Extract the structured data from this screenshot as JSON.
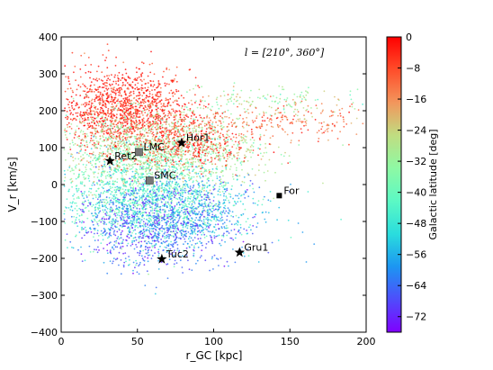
{
  "chart_data": {
    "type": "scatter",
    "xlabel": "r_GC [kpc]",
    "ylabel": "V_r [km/s]",
    "xlim": [
      0,
      200
    ],
    "ylim": [
      -400,
      400
    ],
    "x_ticks": [
      "0",
      "50",
      "100",
      "150",
      "200"
    ],
    "y_ticks": [
      "400",
      "300",
      "200",
      "100",
      "0",
      "−100",
      "−200",
      "−300",
      "−400"
    ],
    "range_annotation": "l = [210°, 360°]",
    "colorbar": {
      "label": "Galactic latitude [deg]",
      "range": [
        -76,
        0
      ],
      "ticks": [
        "0",
        "−8",
        "−16",
        "−24",
        "−32",
        "−40",
        "−48",
        "−56",
        "−64",
        "−72"
      ],
      "colormap": "rainbow",
      "colors": [
        "#8000ff",
        "#4e4dfb",
        "#1c96f2",
        "#2adddd",
        "#5cf9c4",
        "#8ef9a4",
        "#c0dd81",
        "#f2965c",
        "#ff4d2a",
        "#ff0000"
      ]
    },
    "point_regions": [
      {
        "x_center": 40,
        "y_center": 200,
        "x_spread": 22,
        "y_spread": 55,
        "latitude": -4,
        "count": 1400
      },
      {
        "x_center": 60,
        "y_center": 90,
        "x_spread": 35,
        "y_spread": 50,
        "latitude": -30,
        "count": 1500
      },
      {
        "x_center": 55,
        "y_center": -40,
        "x_spread": 30,
        "y_spread": 60,
        "latitude": -44,
        "count": 1500
      },
      {
        "x_center": 60,
        "y_center": -110,
        "x_spread": 25,
        "y_spread": 55,
        "latitude": -66,
        "count": 900
      },
      {
        "x_center": 85,
        "y_center": 110,
        "x_spread": 20,
        "y_spread": 30,
        "latitude": -6,
        "count": 400
      },
      {
        "x_center": 130,
        "y_center": 170,
        "x_spread": 40,
        "y_spread": 25,
        "latitude": -12,
        "count": 300
      },
      {
        "x_center": 140,
        "y_center": 230,
        "x_spread": 35,
        "y_spread": 20,
        "latitude": -30,
        "count": 150
      },
      {
        "x_center": 90,
        "y_center": -80,
        "x_spread": 25,
        "y_spread": 60,
        "latitude": -58,
        "count": 400
      }
    ],
    "markers": [
      {
        "name": "Hor1",
        "x": 79,
        "y": 113,
        "shape": "star"
      },
      {
        "name": "Ret2",
        "x": 32,
        "y": 64,
        "shape": "star"
      },
      {
        "name": "Tuc2",
        "x": 66,
        "y": -202,
        "shape": "star"
      },
      {
        "name": "Gru1",
        "x": 117,
        "y": -184,
        "shape": "star"
      },
      {
        "name": "LMC",
        "x": 51,
        "y": 88,
        "shape": "square"
      },
      {
        "name": "SMC",
        "x": 58,
        "y": 11,
        "shape": "square"
      },
      {
        "name": "For",
        "x": 143,
        "y": -30,
        "shape": "small-square"
      }
    ]
  }
}
